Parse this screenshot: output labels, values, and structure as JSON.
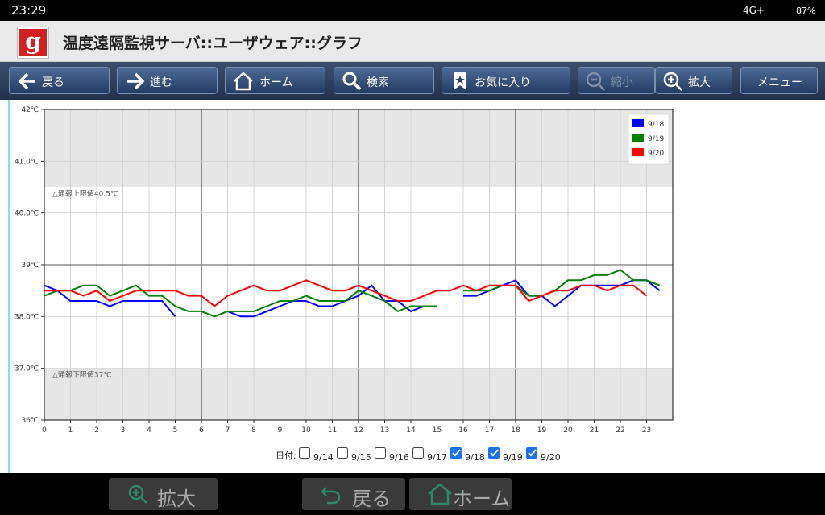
{
  "status_bar": {
    "time": "23:29",
    "network": "4G+",
    "battery": "87%"
  },
  "app_bar": {
    "title": "温度遠隔監視サーバ::ユーザウェア::グラフ"
  },
  "toolbar": {
    "buttons": [
      "戻る",
      "進む",
      "ホーム",
      "検索",
      "お気に入り",
      "縮小",
      "拡大",
      "メニュー"
    ]
  },
  "chart_data": {
    "type": "line",
    "x": [
      0,
      0.5,
      1,
      1.5,
      2,
      2.5,
      3,
      3.5,
      4,
      4.5,
      5,
      5.5,
      6,
      6.5,
      7,
      7.5,
      8,
      8.5,
      9,
      9.5,
      10,
      10.5,
      11,
      11.5,
      12,
      12.5,
      13,
      13.5,
      14,
      14.5,
      15,
      15.5,
      16,
      16.5,
      17,
      17.5,
      18,
      18.5,
      19,
      19.5,
      20,
      20.5,
      21,
      21.5,
      22,
      22.5,
      23,
      23.5
    ],
    "series": [
      {
        "name": "9/18",
        "color": "#0000ff",
        "values": [
          38.6,
          38.5,
          38.3,
          38.3,
          38.3,
          38.2,
          38.3,
          38.3,
          38.3,
          38.3,
          38.0,
          null,
          null,
          null,
          38.1,
          38.0,
          38.0,
          38.1,
          38.2,
          38.3,
          38.3,
          38.2,
          38.2,
          38.3,
          38.4,
          38.6,
          38.3,
          38.3,
          38.1,
          38.2,
          38.2,
          null,
          38.4,
          38.4,
          38.5,
          38.6,
          38.7,
          38.4,
          38.4,
          38.2,
          38.4,
          38.6,
          38.6,
          38.6,
          38.6,
          38.7,
          38.7,
          38.5
        ]
      },
      {
        "name": "9/19",
        "color": "#008000",
        "values": [
          38.4,
          38.5,
          38.5,
          38.6,
          38.6,
          38.4,
          38.5,
          38.6,
          38.4,
          38.4,
          38.2,
          38.1,
          38.1,
          38.0,
          38.1,
          38.1,
          38.1,
          38.2,
          38.3,
          38.3,
          38.4,
          38.3,
          38.3,
          38.3,
          38.5,
          38.4,
          38.3,
          38.1,
          38.2,
          38.2,
          38.2,
          null,
          38.5,
          38.5,
          38.5,
          38.6,
          38.6,
          38.4,
          38.4,
          38.5,
          38.7,
          38.7,
          38.8,
          38.8,
          38.9,
          38.7,
          38.7,
          38.6
        ]
      },
      {
        "name": "9/20",
        "color": "#ff0000",
        "values": [
          38.5,
          38.5,
          38.5,
          38.4,
          38.5,
          38.3,
          38.4,
          38.5,
          38.5,
          38.5,
          38.5,
          38.4,
          38.4,
          38.2,
          38.4,
          38.5,
          38.6,
          38.5,
          38.5,
          38.6,
          38.7,
          38.6,
          38.5,
          38.5,
          38.6,
          38.5,
          38.4,
          38.3,
          38.3,
          38.4,
          38.5,
          38.5,
          38.6,
          38.5,
          38.6,
          38.6,
          38.6,
          38.3,
          38.4,
          38.5,
          38.5,
          38.6,
          38.6,
          38.5,
          38.6,
          38.6,
          38.4,
          null
        ]
      }
    ],
    "xlim": [
      0,
      24
    ],
    "xticks": [
      0,
      1,
      2,
      3,
      4,
      5,
      6,
      7,
      8,
      9,
      10,
      11,
      12,
      13,
      14,
      15,
      16,
      17,
      18,
      19,
      20,
      21,
      22,
      23
    ],
    "ylim": [
      36,
      42
    ],
    "yticks": [
      {
        "value": 36,
        "label": "36℃"
      },
      {
        "value": 37,
        "label": "37.0℃"
      },
      {
        "value": 38,
        "label": "38.0℃"
      },
      {
        "value": 39,
        "label": "39℃"
      },
      {
        "value": 40,
        "label": "40.0℃"
      },
      {
        "value": 41,
        "label": "41.0℃"
      },
      {
        "value": 42,
        "label": "42℃"
      }
    ],
    "thresholds": [
      {
        "value": 40.5,
        "label": "△通報上限値40.5℃"
      },
      {
        "value": 37,
        "label": "△通報下限値37℃"
      }
    ],
    "grid": true,
    "legend": "upper right"
  },
  "date_filter": {
    "label": "日付:",
    "options": [
      {
        "label": "9/14",
        "checked": false
      },
      {
        "label": "9/15",
        "checked": false
      },
      {
        "label": "9/16",
        "checked": false
      },
      {
        "label": "9/17",
        "checked": false
      },
      {
        "label": "9/18",
        "checked": true
      },
      {
        "label": "9/19",
        "checked": true
      },
      {
        "label": "9/20",
        "checked": true
      }
    ]
  },
  "bottom_bar": {
    "buttons": [
      "拡大",
      "戻る",
      "ホーム"
    ]
  }
}
